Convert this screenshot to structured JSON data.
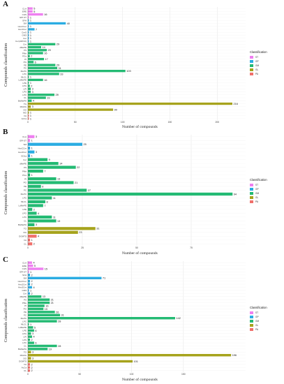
{
  "colors": {
    "ST": "#ee7ff0",
    "GP": "#2aace2",
    "GM": "#23ba73",
    "GL": "#a6a31c",
    "PA": "#f0706b"
  },
  "chart_data": [
    {
      "panel": "A",
      "type": "bar",
      "orientation": "horizontal",
      "xlabel": "Number of compounds",
      "ylabel": "Compounds classification",
      "xlim": [
        0,
        230
      ],
      "xticks": [
        0,
        50,
        100,
        150,
        200
      ],
      "legend_title": "Classification",
      "legend": [
        "ST",
        "GP",
        "GM",
        "GL",
        "PA"
      ],
      "legend_position": "right",
      "grid": true,
      "bars": [
        {
          "label": "CLA",
          "value": 5,
          "class": "ST"
        },
        {
          "label": "ERE",
          "value": 5,
          "class": "ST"
        },
        {
          "label": "CHS",
          "value": 16,
          "class": "ST"
        },
        {
          "label": "EPI-ST",
          "value": 1,
          "class": "ST"
        },
        {
          "label": "SFH",
          "value": 1,
          "class": "GP"
        },
        {
          "label": "SM",
          "value": 40,
          "class": "GP"
        },
        {
          "label": "HexCCer",
          "value": 1,
          "class": "GP"
        },
        {
          "label": "Hex1Cer",
          "value": 7,
          "class": "GP"
        },
        {
          "label": "CerS",
          "value": 1,
          "class": "GP"
        },
        {
          "label": "GM3",
          "value": 1,
          "class": "GP"
        },
        {
          "label": "Cer",
          "value": 1,
          "class": "GP"
        },
        {
          "label": "Cer(d18:0/t)",
          "value": 1,
          "class": "GP"
        },
        {
          "label": "Cer",
          "value": 29,
          "class": "GM"
        },
        {
          "label": "dMePE",
          "value": 14,
          "class": "GM"
        },
        {
          "label": "PS",
          "value": 20,
          "class": "GM"
        },
        {
          "label": "PMe",
          "value": 16,
          "class": "GM"
        },
        {
          "label": "PGs",
          "value": 2,
          "class": "GM"
        },
        {
          "label": "PI",
          "value": 17,
          "class": "GM"
        },
        {
          "label": "PG",
          "value": 6,
          "class": "GM"
        },
        {
          "label": "PE",
          "value": 29,
          "class": "GM"
        },
        {
          "label": "PC",
          "value": 31,
          "class": "GM"
        },
        {
          "label": "MePC",
          "value": 103,
          "class": "GM"
        },
        {
          "label": "LPC",
          "value": 33,
          "class": "GM"
        },
        {
          "label": "MLCL",
          "value": 1,
          "class": "GM"
        },
        {
          "label": "LdMePE",
          "value": 16,
          "class": "GM"
        },
        {
          "label": "LPE",
          "value": 1,
          "class": "GM"
        },
        {
          "label": "LPG",
          "value": 2,
          "class": "GM"
        },
        {
          "label": "LPI",
          "value": 3,
          "class": "GM"
        },
        {
          "label": "LPS",
          "value": 3,
          "class": "GM"
        },
        {
          "label": "LPC",
          "value": 28,
          "class": "GM"
        },
        {
          "label": "CL",
          "value": 19,
          "class": "GM"
        },
        {
          "label": "BisMePA",
          "value": 4,
          "class": "GM"
        },
        {
          "label": "TG",
          "value": 216,
          "class": "GL"
        },
        {
          "label": "MGDG",
          "value": 3,
          "class": "GL"
        },
        {
          "label": "DG",
          "value": 90,
          "class": "GL"
        },
        {
          "label": "MG",
          "value": 1,
          "class": "GL"
        },
        {
          "label": "FA",
          "value": 1,
          "class": "PA"
        },
        {
          "label": "AcCa",
          "value": 1,
          "class": "PA"
        }
      ]
    },
    {
      "panel": "B",
      "type": "bar",
      "orientation": "horizontal",
      "xlabel": "Number of compounds",
      "ylabel": "Compounds classification",
      "xlim": [
        0,
        100
      ],
      "xticks": [
        0,
        25,
        50,
        75
      ],
      "legend_title": "Classification",
      "legend": [
        "ST",
        "GP",
        "GM",
        "GL",
        "PA"
      ],
      "legend_position": "right",
      "grid": true,
      "bars": [
        {
          "label": "CLA",
          "value": 3,
          "class": "ST"
        },
        {
          "label": "EPI-ST",
          "value": 1,
          "class": "ST"
        },
        {
          "label": "SM",
          "value": 25,
          "class": "GP"
        },
        {
          "label": "HexCCer",
          "value": 1,
          "class": "GP"
        },
        {
          "label": "Hex2Cer",
          "value": 3,
          "class": "GP"
        },
        {
          "label": "GD1a",
          "value": 1,
          "class": "GP"
        },
        {
          "label": "Cer",
          "value": 9,
          "class": "GM"
        },
        {
          "label": "dMePE",
          "value": 14,
          "class": "GM"
        },
        {
          "label": "PS",
          "value": 22,
          "class": "GM"
        },
        {
          "label": "PMe",
          "value": 7,
          "class": "GM"
        },
        {
          "label": "PGs",
          "value": 1,
          "class": "GM"
        },
        {
          "label": "PI",
          "value": 13,
          "class": "GM"
        },
        {
          "label": "PG",
          "value": 21,
          "class": "GM"
        },
        {
          "label": "PE",
          "value": 6,
          "class": "GM"
        },
        {
          "label": "PC",
          "value": 27,
          "class": "GM"
        },
        {
          "label": "MePC",
          "value": 94,
          "class": "GM"
        },
        {
          "label": "LPC",
          "value": 11,
          "class": "GM"
        },
        {
          "label": "MLCL",
          "value": 8,
          "class": "GM"
        },
        {
          "label": "LdMePE",
          "value": 7,
          "class": "GM"
        },
        {
          "label": "LPE",
          "value": 2,
          "class": "GM"
        },
        {
          "label": "LPG",
          "value": 4,
          "class": "GM"
        },
        {
          "label": "LPC",
          "value": 11,
          "class": "GM"
        },
        {
          "label": "CL",
          "value": 13,
          "class": "GM"
        },
        {
          "label": "BisMePA",
          "value": 3,
          "class": "GM"
        },
        {
          "label": "TG",
          "value": 31,
          "class": "GL"
        },
        {
          "label": "DG",
          "value": 23,
          "class": "GL"
        },
        {
          "label": "DGMTS",
          "value": 4,
          "class": "PA"
        },
        {
          "label": "FA",
          "value": 1,
          "class": "PA"
        },
        {
          "label": "CL",
          "value": 2,
          "class": "PA"
        }
      ]
    },
    {
      "panel": "C",
      "type": "bar",
      "orientation": "horizontal",
      "xlabel": "Number of compounds",
      "ylabel": "Compounds classification",
      "xlim": [
        0,
        210
      ],
      "xticks": [
        0,
        50,
        100,
        150
      ],
      "legend_title": "Classification",
      "legend": [
        "ST",
        "GP",
        "GM",
        "GL",
        "PA"
      ],
      "legend_position": "right",
      "grid": true,
      "bars": [
        {
          "label": "CLA",
          "value": 4,
          "class": "ST"
        },
        {
          "label": "ERE",
          "value": 5,
          "class": "ST"
        },
        {
          "label": "CHS",
          "value": 15,
          "class": "ST"
        },
        {
          "label": "EPI-ST",
          "value": 1,
          "class": "ST"
        },
        {
          "label": "SFH",
          "value": 2,
          "class": "GP"
        },
        {
          "label": "SM",
          "value": 71,
          "class": "GP"
        },
        {
          "label": "HexCCer",
          "value": 2,
          "class": "GP"
        },
        {
          "label": "Hex2Cer",
          "value": 2,
          "class": "GP"
        },
        {
          "label": "Hex3Cer",
          "value": 4,
          "class": "GP"
        },
        {
          "label": "GM3",
          "value": 1,
          "class": "GP"
        },
        {
          "label": "Cer",
          "value": 2,
          "class": "GP"
        },
        {
          "label": "dMePE",
          "value": 13,
          "class": "GM"
        },
        {
          "label": "PS",
          "value": 21,
          "class": "GM"
        },
        {
          "label": "PMe",
          "value": 21,
          "class": "GM"
        },
        {
          "label": "PI",
          "value": 16,
          "class": "GM"
        },
        {
          "label": "PG",
          "value": 15,
          "class": "GM"
        },
        {
          "label": "PE",
          "value": 26,
          "class": "GM"
        },
        {
          "label": "PC",
          "value": 31,
          "class": "GM"
        },
        {
          "label": "MePC",
          "value": 142,
          "class": "GM"
        },
        {
          "label": "LPC",
          "value": 28,
          "class": "GM"
        },
        {
          "label": "MLCL",
          "value": 1,
          "class": "GM"
        },
        {
          "label": "LdMePE",
          "value": 5,
          "class": "GM"
        },
        {
          "label": "LPE",
          "value": 6,
          "class": "GM"
        },
        {
          "label": "LPG",
          "value": 3,
          "class": "GM"
        },
        {
          "label": "LPI",
          "value": 4,
          "class": "GM"
        },
        {
          "label": "LPS",
          "value": 2,
          "class": "GM"
        },
        {
          "label": "LPC",
          "value": 6,
          "class": "GM"
        },
        {
          "label": "CL",
          "value": 28,
          "class": "GM"
        },
        {
          "label": "BisMePA",
          "value": 19,
          "class": "GM"
        },
        {
          "label": "TG",
          "value": 3,
          "class": "GL"
        },
        {
          "label": "MGDG",
          "value": 196,
          "class": "GL"
        },
        {
          "label": "DG",
          "value": 3,
          "class": "GL"
        },
        {
          "label": "DGMTS",
          "value": 101,
          "class": "GL"
        },
        {
          "label": "FA",
          "value": 2,
          "class": "PA"
        },
        {
          "label": "AcCa",
          "value": 2,
          "class": "PA"
        },
        {
          "label": "CL",
          "value": 2,
          "class": "PA"
        }
      ]
    }
  ]
}
